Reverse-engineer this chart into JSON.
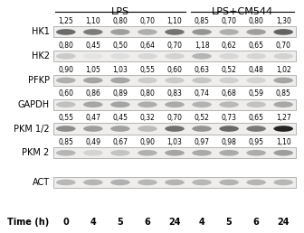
{
  "title_lps": "LPS",
  "title_lps_cm544": "LPS+CM544",
  "time_label": "Time (h)",
  "time_values": [
    "0",
    "4",
    "5",
    "6",
    "24",
    "4",
    "5",
    "6",
    "24"
  ],
  "row_labels": [
    "HK1",
    "HK2",
    "PFKP",
    "GAPDH",
    "PKM 1/2",
    "PKM 2",
    "ACT"
  ],
  "numbers": {
    "HK1": [
      "1,25",
      "1,10",
      "0,80",
      "0,70",
      "1,10",
      "0,85",
      "0,70",
      "0,80",
      "1,30"
    ],
    "HK2": [
      "0,80",
      "0,45",
      "0,50",
      "0,64",
      "0,70",
      "1,18",
      "0,62",
      "0,65",
      "0,70"
    ],
    "PFKP": [
      "0,90",
      "1,05",
      "1,03",
      "0,55",
      "0,60",
      "0,63",
      "0,52",
      "0,48",
      "1,02"
    ],
    "GAPDH": [
      "0,60",
      "0,86",
      "0,89",
      "0,80",
      "0,83",
      "0,74",
      "0,68",
      "0,59",
      "0,85"
    ],
    "PKM 1/2": [
      "0,55",
      "0,47",
      "0,45",
      "0,32",
      "0,70",
      "0,52",
      "0,73",
      "0,65",
      "1,27"
    ],
    "PKM 2": [
      "0,85",
      "0,49",
      "0,67",
      "0,90",
      "1,03",
      "0,97",
      "0,98",
      "0,95",
      "1,10"
    ]
  },
  "band_intensities": {
    "HK1": [
      0.85,
      0.75,
      0.55,
      0.45,
      0.8,
      0.6,
      0.45,
      0.55,
      0.9
    ],
    "HK2": [
      0.3,
      0.15,
      0.18,
      0.22,
      0.25,
      0.42,
      0.22,
      0.23,
      0.25
    ],
    "PFKP": [
      0.45,
      0.52,
      0.5,
      0.28,
      0.3,
      0.32,
      0.26,
      0.24,
      0.51
    ],
    "GAPDH": [
      0.35,
      0.5,
      0.52,
      0.46,
      0.48,
      0.43,
      0.39,
      0.34,
      0.49
    ],
    "PKM 1/2": [
      0.65,
      0.55,
      0.53,
      0.38,
      0.82,
      0.61,
      0.86,
      0.77,
      1.5
    ],
    "PKM 2": [
      0.42,
      0.24,
      0.33,
      0.44,
      0.51,
      0.48,
      0.48,
      0.47,
      0.55
    ],
    "ACT": [
      0.4,
      0.42,
      0.44,
      0.41,
      0.43,
      0.41,
      0.43,
      0.42,
      0.41
    ]
  },
  "bg_color": "#f0eeec",
  "band_color_dark": "#1a1a1a",
  "band_color_mid": "#555555",
  "band_color_light": "#888888",
  "figure_bg": "#ffffff",
  "font_size_label": 7,
  "font_size_numbers": 5.5,
  "font_size_title": 8,
  "font_size_time": 7
}
